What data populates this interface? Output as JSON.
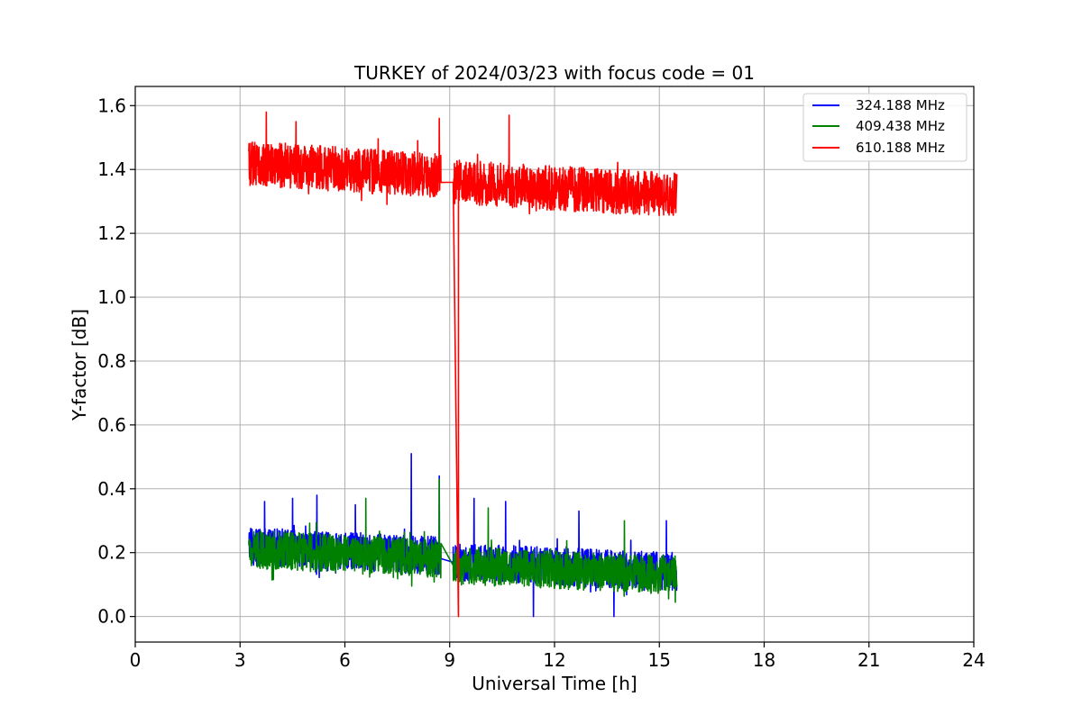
{
  "chart_data": {
    "type": "line",
    "title": "TURKEY of 2024/03/23 with focus code = 01",
    "xlabel": "Universal Time [h]",
    "ylabel": "Y-factor [dB]",
    "xlim": [
      0,
      24
    ],
    "ylim": [
      -0.08,
      1.66
    ],
    "x_ticks": [
      0,
      3,
      6,
      9,
      12,
      15,
      18,
      21,
      24
    ],
    "y_ticks": [
      0.0,
      0.2,
      0.4,
      0.6,
      0.8,
      1.0,
      1.2,
      1.4,
      1.6
    ],
    "x_tick_labels": [
      "0",
      "3",
      "6",
      "9",
      "12",
      "15",
      "18",
      "21",
      "24"
    ],
    "y_tick_labels": [
      "0.0",
      "0.2",
      "0.4",
      "0.6",
      "0.8",
      "1.0",
      "1.2",
      "1.4",
      "1.6"
    ],
    "grid": true,
    "legend_position": "top-right",
    "series": [
      {
        "name": "324.188 MHz",
        "color": "#0000ff",
        "segments": [
          {
            "x_start": 3.25,
            "x_end": 8.75,
            "mean_start": 0.22,
            "mean_end": 0.19,
            "noise_amplitude": 0.06
          },
          {
            "x_start": 9.1,
            "x_end": 15.5,
            "mean_start": 0.17,
            "mean_end": 0.14,
            "noise_amplitude": 0.06
          }
        ],
        "spikes": [
          [
            3.7,
            0.36
          ],
          [
            4.5,
            0.37
          ],
          [
            5.2,
            0.38
          ],
          [
            6.3,
            0.35
          ],
          [
            7.9,
            0.51
          ],
          [
            8.7,
            0.44
          ],
          [
            9.7,
            0.37
          ],
          [
            10.6,
            0.36
          ],
          [
            12.7,
            0.33
          ],
          [
            15.2,
            0.3
          ],
          [
            11.4,
            -0.0
          ],
          [
            13.7,
            -0.0
          ]
        ]
      },
      {
        "name": "409.438 MHz",
        "color": "#008000",
        "segments": [
          {
            "x_start": 3.25,
            "x_end": 8.75,
            "mean_start": 0.21,
            "mean_end": 0.18,
            "noise_amplitude": 0.06
          },
          {
            "x_start": 9.1,
            "x_end": 15.5,
            "mean_start": 0.16,
            "mean_end": 0.13,
            "noise_amplitude": 0.06
          }
        ],
        "spikes": [
          [
            6.6,
            0.37
          ],
          [
            8.7,
            0.43
          ],
          [
            10.1,
            0.34
          ],
          [
            14.0,
            0.3
          ]
        ]
      },
      {
        "name": "610.188 MHz",
        "color": "#ff0000",
        "segments": [
          {
            "x_start": 3.25,
            "x_end": 8.75,
            "mean_start": 1.42,
            "mean_end": 1.38,
            "noise_amplitude": 0.07
          },
          {
            "x_start": 9.1,
            "x_end": 15.5,
            "mean_start": 1.36,
            "mean_end": 1.32,
            "noise_amplitude": 0.07
          }
        ],
        "spikes": [
          [
            3.75,
            1.58
          ],
          [
            4.6,
            1.55
          ],
          [
            8.7,
            1.56
          ],
          [
            10.7,
            1.57
          ]
        ],
        "drop": {
          "x": 9.25,
          "y_top": 1.35,
          "y_bottom": 0.0
        }
      }
    ]
  },
  "colors": {
    "grid": "#b0b0b0",
    "axes": "#000000",
    "legend_border": "#cccccc"
  }
}
